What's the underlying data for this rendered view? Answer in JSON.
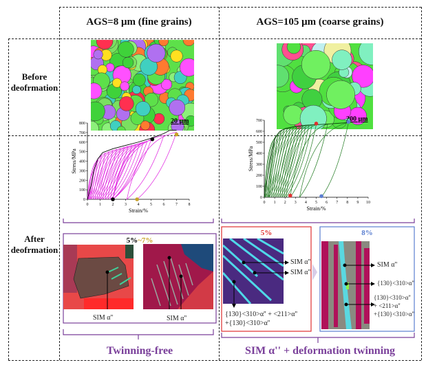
{
  "header": {
    "col1": "AGS=8 μm (fine grains)",
    "col2": "AGS=105 μm (coarse grains)"
  },
  "rows": {
    "before": "Before deofrmation",
    "after": "After deofrmation"
  },
  "micrographs": {
    "fine_scale": "20 μm",
    "coarse_scale": "200 μm"
  },
  "fine_after": {
    "title_a": "5%",
    "title_sep": "~",
    "title_b": "7%",
    "label_left": "SIM α''",
    "label_right": "SIM α''",
    "conclusion": "Twinning-free"
  },
  "coarse_after": {
    "title_5": "5%",
    "title_8": "8%",
    "label_5a": "SIM α''",
    "label_5b": "SIM α''",
    "label_5c1": "{130}<310>α'' + <211>α''",
    "label_5c2": "+{130}<310>α''",
    "label_8a": "SIM α''",
    "label_8b": "{130}<310>α''",
    "label_8c1": "{130}<310>α''",
    "label_8c2": "+ <211>α''",
    "label_8c3": "+{130}<310>α''",
    "conclusion": "SIM α'' + deformation twinning"
  },
  "colors": {
    "fine_curve": "#e020e0",
    "coarse_curve": "#1f7a1f",
    "accent_purple": "#7a3f9a",
    "red": "#e03030",
    "blue": "#5b7fd0",
    "gold": "#c9a227"
  },
  "chart_data": [
    {
      "type": "line",
      "xlabel": "Strain/%",
      "ylabel": "Stress/MPa",
      "xlim": [
        0,
        8
      ],
      "ylim": [
        0,
        800
      ],
      "xticks": [
        "0",
        "1",
        "2",
        "3",
        "4",
        "5",
        "6",
        "7",
        "8"
      ],
      "yticks": [
        "0",
        "100",
        "200",
        "300",
        "400",
        "500",
        "600",
        "700",
        "800"
      ],
      "envelope": [
        [
          0,
          0
        ],
        [
          0.3,
          150
        ],
        [
          0.5,
          300
        ],
        [
          0.8,
          420
        ],
        [
          1.2,
          490
        ],
        [
          2,
          530
        ],
        [
          3,
          565
        ],
        [
          4,
          600
        ],
        [
          5,
          640
        ],
        [
          6,
          690
        ],
        [
          6.5,
          725
        ],
        [
          7,
          725
        ]
      ],
      "cycles_max_strain": [
        0.5,
        0.8,
        1.1,
        1.4,
        1.7,
        2,
        2.3,
        2.6,
        2.9,
        3.2,
        3.5,
        3.8,
        4.1,
        4.4,
        4.7,
        5,
        6,
        7
      ],
      "cycles_residual_strain": [
        0.05,
        0.1,
        0.2,
        0.3,
        0.45,
        0.6,
        0.75,
        0.9,
        1.05,
        1.2,
        1.4,
        1.6,
        1.8,
        2,
        2,
        2,
        3.1,
        3.9
      ],
      "markers": [
        {
          "x": 5.1,
          "y": 630,
          "color": "#000000"
        },
        {
          "x": 2,
          "y": 0,
          "color": "#000000"
        },
        {
          "x": 7,
          "y": 680,
          "color": "#c9a227"
        },
        {
          "x": 3.9,
          "y": 0,
          "color": "#c9a227"
        }
      ]
    },
    {
      "type": "line",
      "xlabel": "Strain/%",
      "ylabel": "Stress/MPa",
      "xlim": [
        0,
        10
      ],
      "ylim": [
        0,
        700
      ],
      "xticks": [
        "0",
        "1",
        "2",
        "3",
        "4",
        "5",
        "6",
        "7",
        "8",
        "9",
        "10"
      ],
      "yticks": [
        "0",
        "100",
        "200",
        "300",
        "400",
        "500",
        "600",
        "700"
      ],
      "envelope": [
        [
          0,
          0
        ],
        [
          0.5,
          300
        ],
        [
          1,
          530
        ],
        [
          1.5,
          600
        ],
        [
          2,
          625
        ],
        [
          3,
          645
        ],
        [
          4,
          655
        ],
        [
          5,
          660
        ],
        [
          6,
          665
        ],
        [
          8.3,
          680
        ]
      ],
      "cycles_max_strain": [
        1,
        1.3,
        1.6,
        1.9,
        2.2,
        2.5,
        2.8,
        3.1,
        3.4,
        3.7,
        4,
        4.3,
        4.6,
        5,
        6.1,
        8.1
      ],
      "cycles_residual_strain": [
        0.05,
        0.15,
        0.3,
        0.4,
        0.5,
        0.7,
        0.9,
        1.1,
        1.3,
        1.5,
        1.7,
        1.9,
        2.1,
        2.5,
        3.4,
        5.5
      ],
      "markers": [
        {
          "x": 5,
          "y": 670,
          "color": "#e03030"
        },
        {
          "x": 2.5,
          "y": 15,
          "color": "#e03030"
        },
        {
          "x": 8.1,
          "y": 685,
          "color": "#5b7fd0"
        },
        {
          "x": 5.5,
          "y": 10,
          "color": "#5b7fd0"
        }
      ]
    }
  ]
}
